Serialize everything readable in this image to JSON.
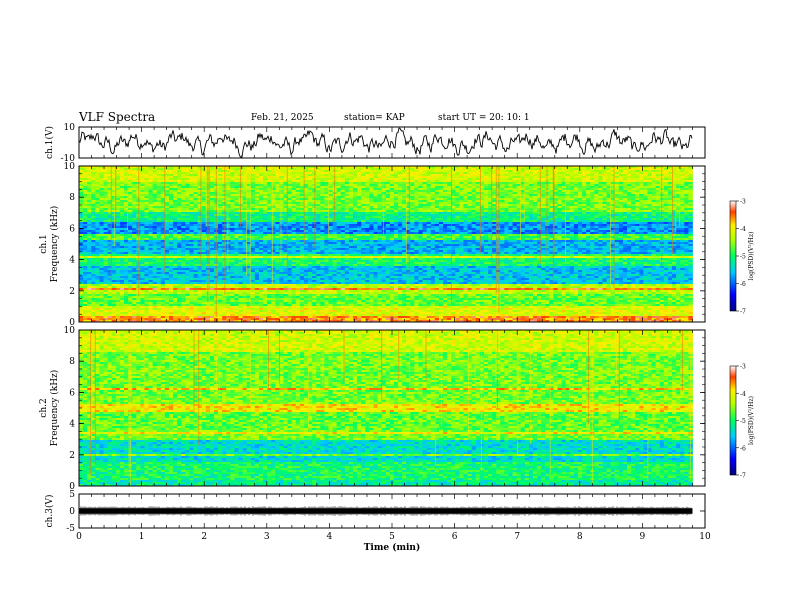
{
  "header": {
    "title": "VLF Spectra",
    "date": "Feb. 21, 2025",
    "station": "station= KAP",
    "start": "start  UT  =   20: 10: 1"
  },
  "chart_data": [
    {
      "type": "line",
      "panel": "ch1-waveform",
      "ylabel": "ch.1(V)",
      "ylim": [
        -10,
        10
      ],
      "yticks": [
        "10",
        "-10"
      ],
      "xlim": [
        0,
        10
      ],
      "description_series": "noisy waveform oscillating roughly between -8 and 8 V over 0 to 9.8 min"
    },
    {
      "type": "heatmap",
      "panel": "ch1-spectrogram",
      "ylabel": "ch.1 Frequency (kHz)",
      "ylim": [
        0,
        10
      ],
      "yticks": [
        "0",
        "2",
        "4",
        "6",
        "8",
        "10"
      ],
      "xlim": [
        0,
        9.8
      ],
      "colorbar": {
        "label": "log(PSD)(V²/Hz)",
        "range": [
          -7,
          -3
        ],
        "ticks": [
          "-3",
          "-4",
          "-5",
          "-6",
          "-7"
        ]
      }
    },
    {
      "type": "heatmap",
      "panel": "ch2-spectrogram",
      "ylabel": "ch.2 Frequency (kHz)",
      "ylim": [
        0,
        10
      ],
      "yticks": [
        "0",
        "2",
        "4",
        "6",
        "8",
        "10"
      ],
      "xlim": [
        0,
        9.8
      ],
      "colorbar": {
        "label": "log(PSD)(V²/Hz)",
        "range": [
          -7,
          -3
        ],
        "ticks": [
          "-3",
          "-4",
          "-5",
          "-6",
          "-7"
        ]
      }
    },
    {
      "type": "line",
      "panel": "ch3-waveform",
      "ylabel": "ch.3(V)",
      "ylim": [
        -5,
        5
      ],
      "yticks": [
        "5",
        "0",
        "-5"
      ],
      "xlim": [
        0,
        10
      ],
      "xlabel": "Time  (min)",
      "xticks": [
        "0",
        "1",
        "2",
        "3",
        "4",
        "5",
        "6",
        "7",
        "8",
        "9",
        "10"
      ]
    }
  ]
}
